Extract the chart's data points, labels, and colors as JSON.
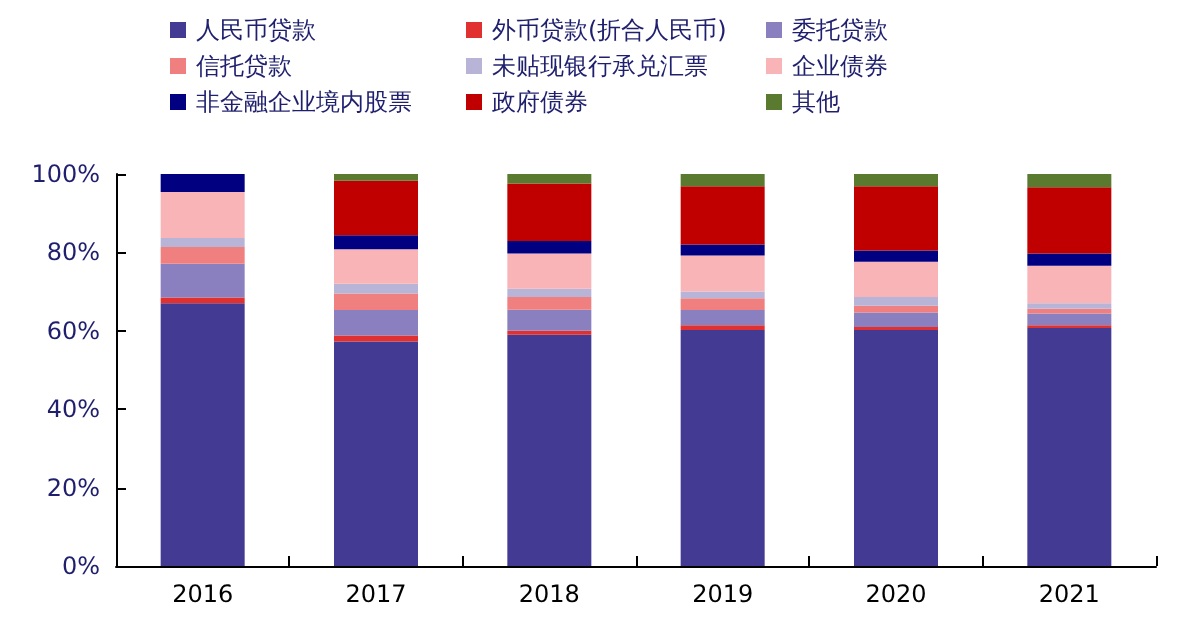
{
  "chart_data": {
    "type": "bar",
    "stacked": true,
    "categories": [
      "2016",
      "2017",
      "2018",
      "2019",
      "2020",
      "2021"
    ],
    "series": [
      {
        "name": "人民币贷款",
        "color": "#433a94",
        "values": [
          67,
          57.3,
          59,
          60.2,
          60.2,
          60.7
        ]
      },
      {
        "name": "外币贷款(折合人民币)",
        "color": "#e03030",
        "values": [
          1.5,
          1.5,
          1,
          1.2,
          0.8,
          0.7
        ]
      },
      {
        "name": "委托贷款",
        "color": "#8a80c0",
        "values": [
          8.6,
          6.5,
          5.4,
          3.9,
          3.7,
          3
        ]
      },
      {
        "name": "信托贷款",
        "color": "#f08080",
        "values": [
          4.3,
          4.2,
          3.2,
          3,
          1.7,
          1.2
        ]
      },
      {
        "name": "未贴现银行承兑汇票",
        "color": "#b8b4d8",
        "values": [
          2.3,
          2.5,
          2.1,
          1.7,
          2.2,
          1.4
        ]
      },
      {
        "name": "企业债券",
        "color": "#f9b4b8",
        "values": [
          11.7,
          8.8,
          9,
          9.2,
          9,
          9.6
        ]
      },
      {
        "name": "非金融企业境内股票",
        "color": "#000080",
        "values": [
          4.6,
          3.6,
          3.2,
          2.8,
          2.9,
          3.1
        ]
      },
      {
        "name": "政府债券",
        "color": "#c00000",
        "values": [
          0,
          13.9,
          14.7,
          14.9,
          16.4,
          16.9
        ]
      },
      {
        "name": "其他",
        "color": "#5a7a30",
        "values": [
          0,
          1.7,
          2.4,
          3.1,
          3.1,
          3.4
        ]
      }
    ],
    "ylim": [
      0,
      100
    ],
    "yticks": [
      {
        "value": 0,
        "label": "0%"
      },
      {
        "value": 20,
        "label": "20%"
      },
      {
        "value": 40,
        "label": "40%"
      },
      {
        "value": 60,
        "label": "60%"
      },
      {
        "value": 80,
        "label": "80%"
      },
      {
        "value": 100,
        "label": "100%"
      }
    ],
    "grid": false,
    "legend": "top"
  }
}
